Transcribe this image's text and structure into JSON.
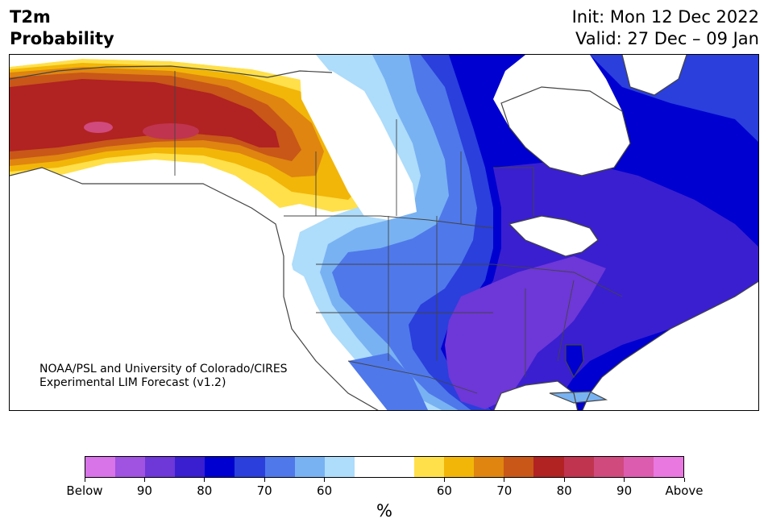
{
  "header": {
    "title_line1": "T2m",
    "title_line2": "Probability",
    "init_text": "Init: Mon 12 Dec 2022",
    "valid_text": "Valid: 27 Dec – 09 Jan"
  },
  "map": {
    "credit_line1": "NOAA/PSL and University of Colorado/CIRES",
    "credit_line2": "Experimental LIM Forecast (v1.2)",
    "land_outline_color": "#444444"
  },
  "colorbar": {
    "colors": [
      "#d873e8",
      "#a052e0",
      "#6e37d8",
      "#3a1fd0",
      "#0000d0",
      "#2a3fdc",
      "#4f78ea",
      "#78b2f2",
      "#aedcfb",
      "#ffffff",
      "#ffffff",
      "#ffe04a",
      "#f2b608",
      "#df8510",
      "#c85718",
      "#b12222",
      "#c03450",
      "#d04a7e",
      "#dc5cb0",
      "#e978e0"
    ],
    "tick_labels": [
      "Below",
      "90",
      "80",
      "70",
      "60",
      "60",
      "70",
      "80",
      "90",
      "Above"
    ],
    "units": "%"
  }
}
